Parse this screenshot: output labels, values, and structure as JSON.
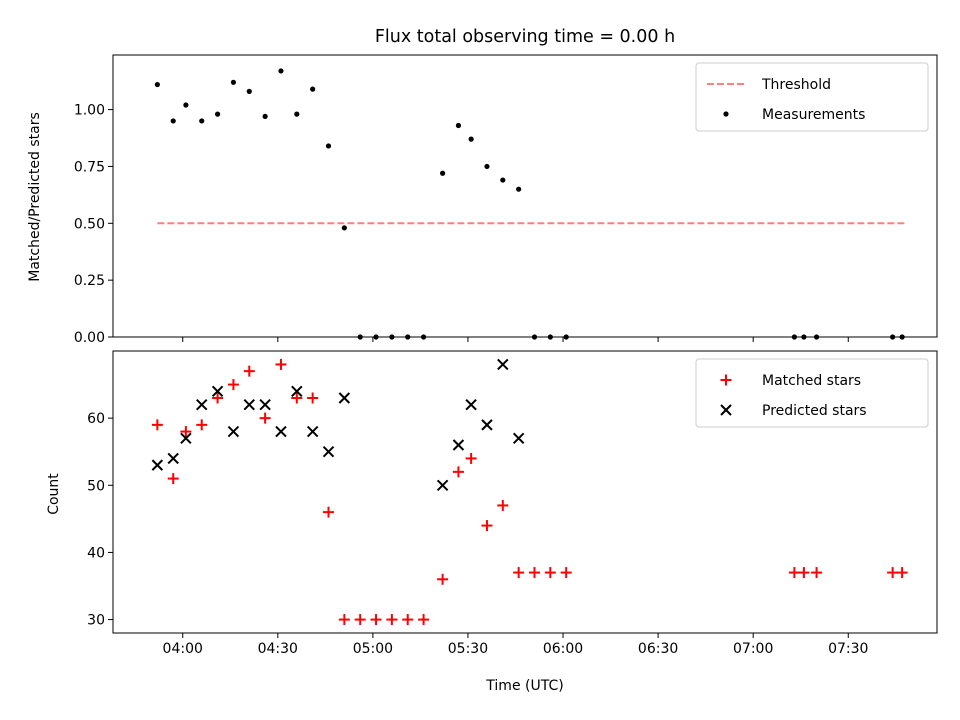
{
  "chart_data": [
    {
      "type": "scatter",
      "title": "Flux total observing time = 0.00 h",
      "xlabel": "",
      "ylabel": "Matched/Predicted stars",
      "xlim": [
        "03:38",
        "07:58"
      ],
      "ylim": [
        0,
        1.24
      ],
      "yticks": [
        0,
        0.25,
        0.5,
        0.75,
        1.0
      ],
      "ytick_labels": [
        "0.00",
        "0.25",
        "0.50",
        "0.75",
        "1.00"
      ],
      "threshold": {
        "name": "Threshold",
        "value": 0.5,
        "x_start": "03:52",
        "x_end": "07:48",
        "color": "#ff7f7f"
      },
      "legend": {
        "position": "top-right",
        "labels": [
          "Threshold",
          "Measurements"
        ]
      },
      "series": [
        {
          "name": "Measurements",
          "color": "#000000",
          "marker": "dot",
          "x": [
            "03:52",
            "03:57",
            "04:01",
            "04:06",
            "04:11",
            "04:16",
            "04:21",
            "04:26",
            "04:31",
            "04:36",
            "04:41",
            "04:46",
            "04:51",
            "04:56",
            "05:01",
            "05:06",
            "05:11",
            "05:16",
            "05:22",
            "05:27",
            "05:31",
            "05:36",
            "05:41",
            "05:46",
            "05:51",
            "05:56",
            "06:01",
            "07:13",
            "07:16",
            "07:20",
            "07:44",
            "07:47"
          ],
          "y": [
            1.11,
            0.95,
            1.02,
            0.95,
            0.98,
            1.12,
            1.08,
            0.97,
            1.17,
            0.98,
            1.09,
            0.84,
            0.48,
            0.0,
            0.0,
            0.0,
            0.0,
            0.0,
            0.72,
            0.93,
            0.87,
            0.75,
            0.69,
            0.65,
            0.0,
            0.0,
            0.0,
            0.0,
            0.0,
            0.0,
            0.0,
            0.0
          ]
        }
      ]
    },
    {
      "type": "scatter",
      "title": "",
      "xlabel": "Time (UTC)",
      "ylabel": "Count",
      "xlim": [
        "03:38",
        "07:58"
      ],
      "ylim": [
        28,
        70
      ],
      "yticks": [
        30,
        40,
        50,
        60
      ],
      "ytick_labels": [
        "30",
        "40",
        "50",
        "60"
      ],
      "xticks": [
        "04:00",
        "04:30",
        "05:00",
        "05:30",
        "06:00",
        "06:30",
        "07:00",
        "07:30"
      ],
      "legend": {
        "position": "top-right",
        "labels": [
          "Matched stars",
          "Predicted stars"
        ]
      },
      "series": [
        {
          "name": "Matched stars",
          "color": "#ff0000",
          "marker": "plus",
          "x": [
            "03:52",
            "03:57",
            "04:01",
            "04:06",
            "04:11",
            "04:16",
            "04:21",
            "04:26",
            "04:31",
            "04:36",
            "04:41",
            "04:46",
            "04:51",
            "04:56",
            "05:01",
            "05:06",
            "05:11",
            "05:16",
            "05:22",
            "05:27",
            "05:31",
            "05:36",
            "05:41",
            "05:46",
            "05:51",
            "05:56",
            "06:01",
            "07:13",
            "07:16",
            "07:20",
            "07:44",
            "07:47"
          ],
          "y": [
            59,
            51,
            58,
            59,
            63,
            65,
            67,
            60,
            68,
            63,
            63,
            46,
            30,
            30,
            30,
            30,
            30,
            30,
            36,
            52,
            54,
            44,
            47,
            37,
            37,
            37,
            37,
            37,
            37,
            37,
            37,
            37
          ]
        },
        {
          "name": "Predicted stars",
          "color": "#000000",
          "marker": "x",
          "x": [
            "03:52",
            "03:57",
            "04:01",
            "04:06",
            "04:11",
            "04:16",
            "04:21",
            "04:26",
            "04:31",
            "04:36",
            "04:41",
            "04:46",
            "04:51",
            "05:22",
            "05:27",
            "05:31",
            "05:36",
            "05:41",
            "05:46"
          ],
          "y": [
            53,
            54,
            57,
            62,
            64,
            58,
            62,
            62,
            58,
            64,
            58,
            55,
            63,
            50,
            56,
            62,
            59,
            68,
            57
          ]
        }
      ]
    }
  ]
}
